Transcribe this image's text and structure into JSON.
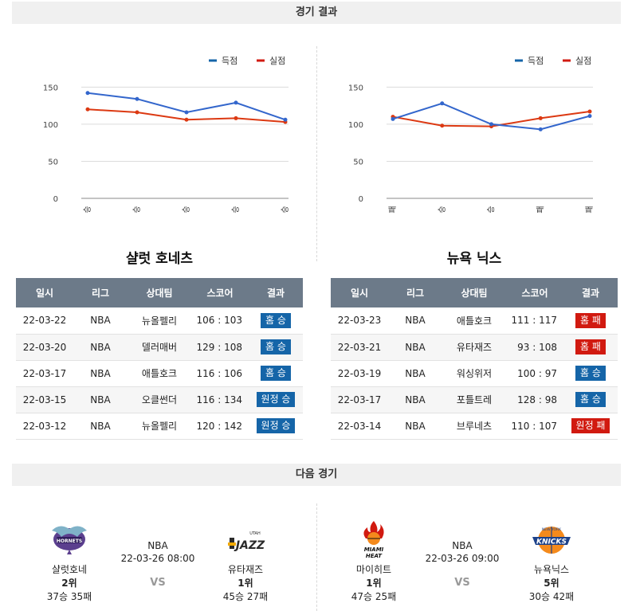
{
  "headers": {
    "results": "경기 결과",
    "next": "다음 경기"
  },
  "legend": {
    "scored": "득점",
    "conceded": "실점",
    "scored_color": "#1565a8",
    "conceded_color": "#d11a10"
  },
  "chart_data": [
    {
      "type": "line",
      "categories": [
        "승",
        "승",
        "승",
        "승",
        "승"
      ],
      "series": [
        {
          "name": "득점",
          "values": [
            142,
            134,
            116,
            129,
            106
          ],
          "color": "#3366cc"
        },
        {
          "name": "실점",
          "values": [
            120,
            116,
            106,
            108,
            103
          ],
          "color": "#dc3912"
        }
      ],
      "yticks": [
        0,
        50,
        100,
        150
      ],
      "ylim": [
        0,
        160
      ],
      "grid": true,
      "legend_position": "top-right"
    },
    {
      "type": "line",
      "categories": [
        "패",
        "승",
        "승",
        "패",
        "패"
      ],
      "series": [
        {
          "name": "득점",
          "values": [
            107,
            128,
            100,
            93,
            111
          ],
          "color": "#3366cc"
        },
        {
          "name": "실점",
          "values": [
            110,
            98,
            97,
            108,
            117
          ],
          "color": "#dc3912"
        }
      ],
      "yticks": [
        0,
        50,
        100,
        150
      ],
      "ylim": [
        0,
        160
      ],
      "grid": true,
      "legend_position": "top-right"
    }
  ],
  "teams": {
    "left": {
      "title": "샬럿 호네츠",
      "columns": [
        "일시",
        "리그",
        "상대팀",
        "스코어",
        "결과"
      ],
      "rows": [
        {
          "date": "22-03-22",
          "league": "NBA",
          "opponent": "뉴올펠리",
          "score": "106 : 103",
          "result": "홈 승",
          "type": "win"
        },
        {
          "date": "22-03-20",
          "league": "NBA",
          "opponent": "델러매버",
          "score": "129 : 108",
          "result": "홈 승",
          "type": "win"
        },
        {
          "date": "22-03-17",
          "league": "NBA",
          "opponent": "애틀호크",
          "score": "116 : 106",
          "result": "홈 승",
          "type": "win"
        },
        {
          "date": "22-03-15",
          "league": "NBA",
          "opponent": "오클썬더",
          "score": "116 : 134",
          "result": "원정 승",
          "type": "win"
        },
        {
          "date": "22-03-12",
          "league": "NBA",
          "opponent": "뉴올펠리",
          "score": "120 : 142",
          "result": "원정 승",
          "type": "win"
        }
      ]
    },
    "right": {
      "title": "뉴욕 닉스",
      "columns": [
        "일시",
        "리그",
        "상대팀",
        "스코어",
        "결과"
      ],
      "rows": [
        {
          "date": "22-03-23",
          "league": "NBA",
          "opponent": "애틀호크",
          "score": "111 : 117",
          "result": "홈 패",
          "type": "loss"
        },
        {
          "date": "22-03-21",
          "league": "NBA",
          "opponent": "유타재즈",
          "score": "93 : 108",
          "result": "홈 패",
          "type": "loss"
        },
        {
          "date": "22-03-19",
          "league": "NBA",
          "opponent": "워싱위저",
          "score": "100 : 97",
          "result": "홈 승",
          "type": "win"
        },
        {
          "date": "22-03-17",
          "league": "NBA",
          "opponent": "포틀트레",
          "score": "128 : 98",
          "result": "홈 승",
          "type": "win"
        },
        {
          "date": "22-03-14",
          "league": "NBA",
          "opponent": "브루네츠",
          "score": "110 : 107",
          "result": "원정 패",
          "type": "loss"
        }
      ]
    }
  },
  "next_games": [
    {
      "league": "NBA",
      "datetime": "22-03-26 08:00",
      "vs": "VS",
      "home": {
        "name": "샬럿호네",
        "rank": "2위",
        "record": "37승 35패",
        "logo": "hornets-logo"
      },
      "away": {
        "name": "유타재즈",
        "rank": "1위",
        "record": "45승 27패",
        "logo": "jazz-logo"
      }
    },
    {
      "league": "NBA",
      "datetime": "22-03-26 09:00",
      "vs": "VS",
      "home": {
        "name": "마이히트",
        "rank": "1위",
        "record": "47승 25패",
        "logo": "heat-logo"
      },
      "away": {
        "name": "뉴욕닉스",
        "rank": "5위",
        "record": "30승 42패",
        "logo": "knicks-logo"
      }
    }
  ]
}
